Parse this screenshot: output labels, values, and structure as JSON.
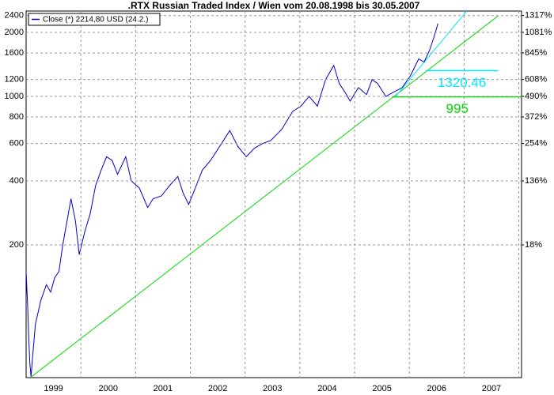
{
  "chart_data": {
    "type": "line",
    "title": ".RTX Russian Traded Index / Wien vom 20.08.1998 bis 30.05.2007",
    "scale": "log",
    "grid": true,
    "legend": "top-left",
    "xlim": [
      1999,
      2008.05
    ],
    "xticks": [
      {
        "value": 1999.5,
        "label": "1999"
      },
      {
        "value": 2000.5,
        "label": "2000"
      },
      {
        "value": 2001.5,
        "label": "2001"
      },
      {
        "value": 2002.5,
        "label": "2002"
      },
      {
        "value": 2003.5,
        "label": "2003"
      },
      {
        "value": 2004.5,
        "label": "2004"
      },
      {
        "value": 2005.5,
        "label": "2005"
      },
      {
        "value": 2006.5,
        "label": "2006"
      },
      {
        "value": 2007.5,
        "label": "2007"
      }
    ],
    "ylim": [
      47.5,
      2520
    ],
    "yticks": [
      200,
      400,
      600,
      800,
      1000,
      1200,
      1600,
      2000,
      2400
    ],
    "y2lim": [
      -72,
      1387
    ],
    "y2ticks": [
      {
        "value": 18,
        "label": "18%"
      },
      {
        "value": 136,
        "label": "136%"
      },
      {
        "value": 254,
        "label": "254%"
      },
      {
        "value": 372,
        "label": "372%"
      },
      {
        "value": 490,
        "label": "490%"
      },
      {
        "value": 608,
        "label": "608%"
      },
      {
        "value": 845,
        "label": "845%"
      },
      {
        "value": 1081,
        "label": "1081%"
      },
      {
        "value": 1317,
        "label": "1317%"
      }
    ],
    "series": [
      {
        "name": "Close (*) 2214,80 USD (24.2.)",
        "color": "#0000cc",
        "x": [
          1999.0,
          1999.03,
          1999.05,
          1999.07,
          1999.09,
          1999.12,
          1999.17,
          1999.27,
          1999.37,
          1999.45,
          1999.52,
          1999.6,
          1999.67,
          1999.77,
          1999.82,
          1999.9,
          1999.97,
          2000.07,
          2000.17,
          2000.27,
          2000.37,
          2000.47,
          2000.57,
          2000.67,
          2000.82,
          2000.92,
          2001.07,
          2001.22,
          2001.32,
          2001.47,
          2001.62,
          2001.77,
          2001.87,
          2001.97,
          2002.07,
          2002.22,
          2002.37,
          2002.57,
          2002.72,
          2002.87,
          2003.02,
          2003.17,
          2003.32,
          2003.47,
          2003.67,
          2003.87,
          2004.02,
          2004.17,
          2004.32,
          2004.47,
          2004.62,
          2004.72,
          2004.82,
          2004.92,
          2005.07,
          2005.22,
          2005.32,
          2005.42,
          2005.57,
          2005.72,
          2005.87,
          2006.02,
          2006.17,
          2006.27,
          2006.37,
          2006.45,
          2006.5,
          2006.52
        ],
        "values": [
          150,
          100,
          70,
          55,
          48,
          60,
          85,
          110,
          130,
          120,
          140,
          150,
          200,
          280,
          330,
          260,
          180,
          230,
          280,
          380,
          450,
          520,
          500,
          430,
          520,
          400,
          370,
          300,
          330,
          340,
          380,
          420,
          350,
          310,
          360,
          450,
          500,
          600,
          690,
          580,
          520,
          570,
          600,
          620,
          700,
          850,
          900,
          1000,
          900,
          1200,
          1400,
          1150,
          1050,
          950,
          1100,
          1020,
          1200,
          1150,
          1000,
          1050,
          1100,
          1250,
          1500,
          1450,
          1650,
          1900,
          2100,
          2200
        ]
      }
    ],
    "trend_lines": [
      {
        "color": "#00dd00",
        "x": [
          1999.1,
          2007.63
        ],
        "values": [
          48,
          2400
        ]
      },
      {
        "color": "#00e5ff",
        "x": [
          2005.75,
          2007.05
        ],
        "values": [
          1000,
          2520
        ]
      }
    ],
    "levels": [
      {
        "value": 1320.46,
        "color": "#00e5ff",
        "x": [
          2006.3,
          2007.62
        ]
      },
      {
        "value": 995,
        "color": "#00dd00",
        "x": [
          2005.7,
          2008.05
        ]
      }
    ]
  }
}
